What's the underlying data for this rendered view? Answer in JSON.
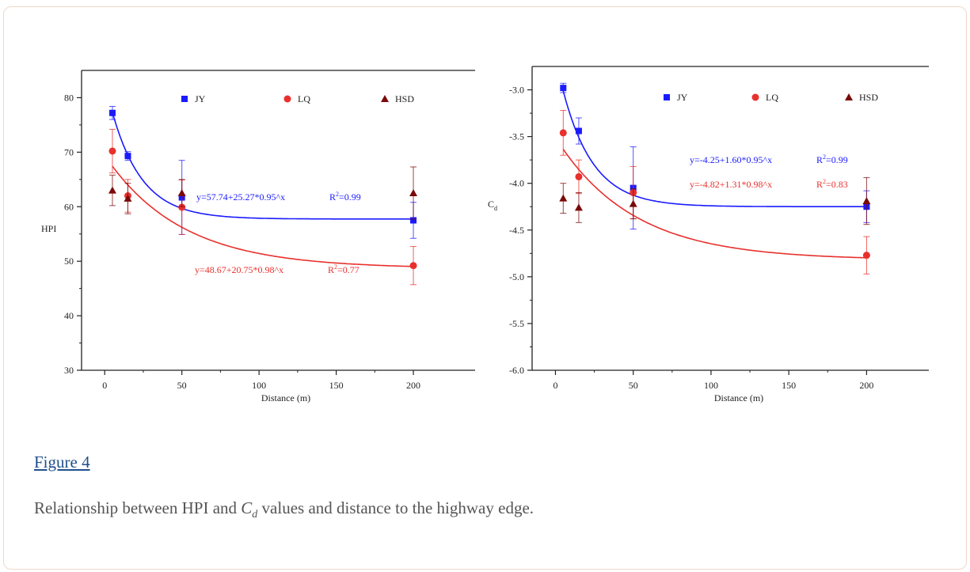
{
  "figure": {
    "link_label": "Figure 4",
    "caption_before": "Relationship between HPI and ",
    "caption_symbol": "C",
    "caption_subscript": "d",
    "caption_after": " values and distance to the highway edge."
  },
  "chart_data": [
    {
      "type": "scatter",
      "xlabel": "Distance (m)",
      "ylabel": "HPI",
      "xlim": [
        -15,
        240
      ],
      "ylim": [
        30,
        85
      ],
      "xticks": [
        0,
        50,
        100,
        150,
        200
      ],
      "yticks": [
        30,
        40,
        50,
        60,
        70,
        80
      ],
      "legend_position": "top",
      "series": [
        {
          "name": "JY",
          "color": "#1a1aff",
          "marker": "square",
          "x": [
            5,
            15,
            50,
            200
          ],
          "y": [
            77.2,
            69.3,
            61.7,
            57.5
          ],
          "err": [
            1.2,
            0.8,
            6.8,
            3.3
          ],
          "fit": {
            "a": 57.74,
            "b": 25.27,
            "c": 0.95
          },
          "equation": "y=57.74+25.27*0.95^x",
          "r2": "=0.99"
        },
        {
          "name": "LQ",
          "color": "#e8302d",
          "marker": "circle",
          "x": [
            5,
            15,
            50,
            200
          ],
          "y": [
            70.2,
            62.0,
            59.9,
            49.2
          ],
          "err": [
            4.0,
            3.0,
            5.0,
            3.5
          ],
          "fit": {
            "a": 48.67,
            "b": 20.75,
            "c": 0.98
          },
          "equation": "y=48.67+20.75*0.98^x",
          "r2": "=0.77"
        },
        {
          "name": "HSD",
          "color": "#7a0a0a",
          "marker": "triangle",
          "x": [
            5,
            15,
            50,
            200
          ],
          "y": [
            63.0,
            61.5,
            62.5,
            62.5
          ],
          "err": [
            2.8,
            2.8,
            2.5,
            4.8
          ]
        }
      ]
    },
    {
      "type": "scatter",
      "xlabel": "Distance (m)",
      "ylabel": "C",
      "ylabel_sub": "d",
      "xlim": [
        -15,
        240
      ],
      "ylim": [
        -6.0,
        -2.75
      ],
      "xticks": [
        0,
        50,
        100,
        150,
        200
      ],
      "yticks": [
        -3.0,
        -3.5,
        -4.0,
        -4.5,
        -5.0,
        -5.5,
        -6.0
      ],
      "legend_position": "top",
      "series": [
        {
          "name": "JY",
          "color": "#1a1aff",
          "marker": "square",
          "x": [
            5,
            15,
            50,
            200
          ],
          "y": [
            -2.98,
            -3.44,
            -4.05,
            -4.25
          ],
          "err": [
            0.05,
            0.14,
            0.44,
            0.17
          ],
          "fit": {
            "a": -4.25,
            "b": 1.6,
            "c": 0.95
          },
          "equation": "y=-4.25+1.60*0.95^x",
          "r2": "=0.99"
        },
        {
          "name": "LQ",
          "color": "#e8302d",
          "marker": "circle",
          "x": [
            5,
            15,
            50,
            200
          ],
          "y": [
            -3.46,
            -3.93,
            -4.1,
            -4.77
          ],
          "err": [
            0.24,
            0.18,
            0.28,
            0.2
          ],
          "fit": {
            "a": -4.82,
            "b": 1.31,
            "c": 0.98
          },
          "equation": "y=-4.82+1.31*0.98^x",
          "r2": "=0.83"
        },
        {
          "name": "HSD",
          "color": "#7a0a0a",
          "marker": "triangle",
          "x": [
            5,
            15,
            50,
            200
          ],
          "y": [
            -4.16,
            -4.26,
            -4.22,
            -4.19
          ],
          "err": [
            0.16,
            0.16,
            0.16,
            0.25
          ]
        }
      ]
    }
  ]
}
